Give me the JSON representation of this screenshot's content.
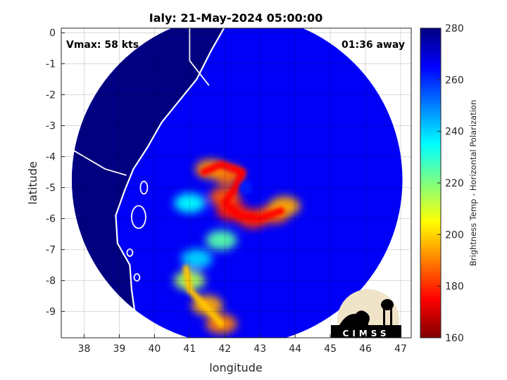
{
  "chart_data": {
    "type": "heatmap",
    "title": "Ialy: 21-May-2024 05:00:00",
    "xlabel": "longitude",
    "ylabel": "latitude",
    "xlim": [
      37.35,
      47.3
    ],
    "ylim": [
      -9.85,
      0.15
    ],
    "xticks": [
      38,
      39,
      40,
      41,
      42,
      43,
      44,
      45,
      46,
      47
    ],
    "yticks": [
      0,
      -1,
      -2,
      -3,
      -4,
      -5,
      -6,
      -7,
      -8,
      -9
    ],
    "grid": true,
    "annotations": {
      "vmax": "Vmax: 58 kts",
      "time_away": "01:36 away"
    },
    "colorbar": {
      "label": "Brightness Temp - Horizontal Polarization",
      "range": [
        160,
        280
      ],
      "ticks": [
        160,
        180,
        200,
        220,
        240,
        260,
        280
      ],
      "colormap": [
        "#800000",
        "#ff0000",
        "#ff8000",
        "#ffff00",
        "#80ff80",
        "#00ffff",
        "#0080ff",
        "#0000ff",
        "#000080"
      ]
    },
    "swath": {
      "center_lon": 42.35,
      "center_lat": -4.75,
      "radius_deg": 4.7,
      "background_temp": 266,
      "cyclone_center": [
        42.6,
        -5.0
      ]
    },
    "cold_features_lonlat": [
      {
        "lon": 42.1,
        "lat": -4.6,
        "temp": 188
      },
      {
        "lon": 41.6,
        "lat": -4.4,
        "temp": 192
      },
      {
        "lon": 42.0,
        "lat": -5.3,
        "temp": 185
      },
      {
        "lon": 42.2,
        "lat": -5.75,
        "temp": 178
      },
      {
        "lon": 42.8,
        "lat": -6.0,
        "temp": 180
      },
      {
        "lon": 43.4,
        "lat": -5.85,
        "temp": 185
      },
      {
        "lon": 43.7,
        "lat": -5.6,
        "temp": 195
      },
      {
        "lon": 41.9,
        "lat": -6.7,
        "temp": 225
      },
      {
        "lon": 41.0,
        "lat": -8.0,
        "temp": 215
      },
      {
        "lon": 41.5,
        "lat": -8.8,
        "temp": 195
      },
      {
        "lon": 41.9,
        "lat": -9.4,
        "temp": 190
      },
      {
        "lon": 41.0,
        "lat": -5.5,
        "temp": 235
      },
      {
        "lon": 41.2,
        "lat": -7.3,
        "temp": 240
      }
    ]
  },
  "logo": {
    "text": "CIMSS"
  }
}
